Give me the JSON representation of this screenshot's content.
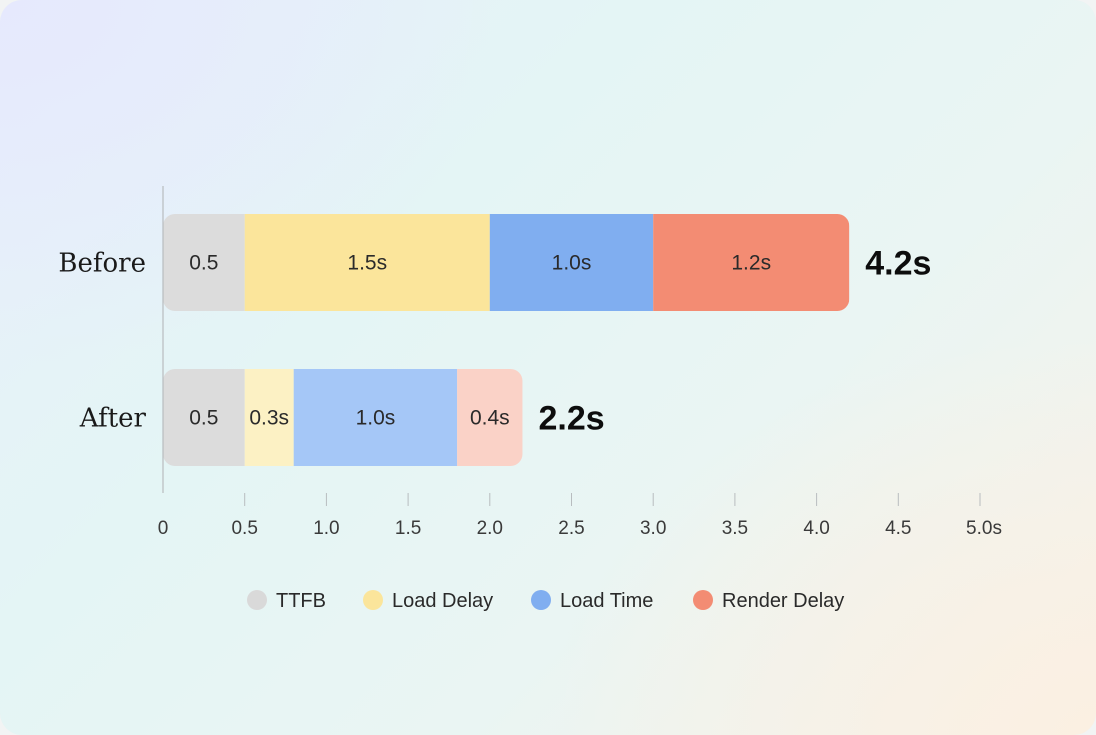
{
  "chart_data": {
    "type": "bar",
    "orientation": "horizontal",
    "stacked": true,
    "title": "",
    "xlabel": "",
    "ylabel": "",
    "xlim": [
      0,
      5.0
    ],
    "x_ticks": [
      0,
      0.5,
      1.0,
      1.5,
      2.0,
      2.5,
      3.0,
      3.5,
      4.0,
      4.5,
      5.0
    ],
    "x_tick_labels": [
      "0",
      "0.5",
      "1.0",
      "1.5",
      "2.0",
      "2.5",
      "3.0",
      "3.5",
      "4.0",
      "4.5",
      "5.0s"
    ],
    "grid": false,
    "legend": "bottom",
    "categories": [
      "Before",
      "After"
    ],
    "series": [
      {
        "name": "TTFB",
        "values": [
          0.5,
          0.5
        ],
        "labels": [
          "0.5",
          "0.5"
        ],
        "colors": [
          "#dcdcdc",
          "#dcdcdc"
        ]
      },
      {
        "name": "Load Delay",
        "values": [
          1.5,
          0.3
        ],
        "labels": [
          "1.5s",
          "0.3s"
        ],
        "colors": [
          "#fbe59b",
          "#fcf1c4"
        ]
      },
      {
        "name": "Load Time",
        "values": [
          1.0,
          1.0
        ],
        "labels": [
          "1.0s",
          "1.0s"
        ],
        "colors": [
          "#80aef0",
          "#a5c7f7"
        ]
      },
      {
        "name": "Render Delay",
        "values": [
          1.2,
          0.4
        ],
        "labels": [
          "1.2s",
          "0.4s"
        ],
        "colors": [
          "#f38c73",
          "#fad2c7"
        ]
      }
    ],
    "totals": [
      "4.2s",
      "2.2s"
    ],
    "legend_colors": [
      "#d9d9d9",
      "#fbe59b",
      "#80aef0",
      "#f38c73"
    ]
  }
}
